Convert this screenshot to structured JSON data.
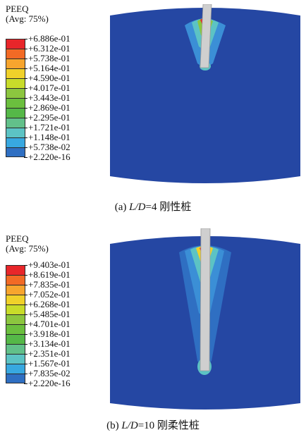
{
  "panels": [
    {
      "variable": "PEEQ",
      "averaging": "(Avg: 75%)",
      "legend_values": [
        "+6.886e-01",
        "+6.312e-01",
        "+5.738e-01",
        "+5.164e-01",
        "+4.590e-01",
        "+4.017e-01",
        "+3.443e-01",
        "+2.869e-01",
        "+2.295e-01",
        "+1.721e-01",
        "+1.148e-01",
        "+5.738e-02",
        "+2.220e-16"
      ],
      "caption_prefix": "(a) ",
      "caption_var": "L/D",
      "caption_rest": "=4 刚性桩"
    },
    {
      "variable": "PEEQ",
      "averaging": "(Avg: 75%)",
      "legend_values": [
        "+9.403e-01",
        "+8.619e-01",
        "+7.835e-01",
        "+7.052e-01",
        "+6.268e-01",
        "+5.485e-01",
        "+4.701e-01",
        "+3.918e-01",
        "+3.134e-01",
        "+2.351e-01",
        "+1.567e-01",
        "+7.835e-02",
        "+2.220e-16"
      ],
      "caption_prefix": "(b) ",
      "caption_var": "L/D",
      "caption_rest": "=10 刚柔性桩"
    }
  ],
  "colors": {
    "legend_scale": [
      "#e8262a",
      "#f26a25",
      "#f7a52e",
      "#f0d12a",
      "#c8dc2a",
      "#8cc63f",
      "#6bbf3e",
      "#55b848",
      "#62c08a",
      "#5cc3c4",
      "#38a8e0",
      "#2f6fc2",
      "#2547a3"
    ],
    "soil": "#2547a3",
    "pile": "#cfcfcf"
  }
}
